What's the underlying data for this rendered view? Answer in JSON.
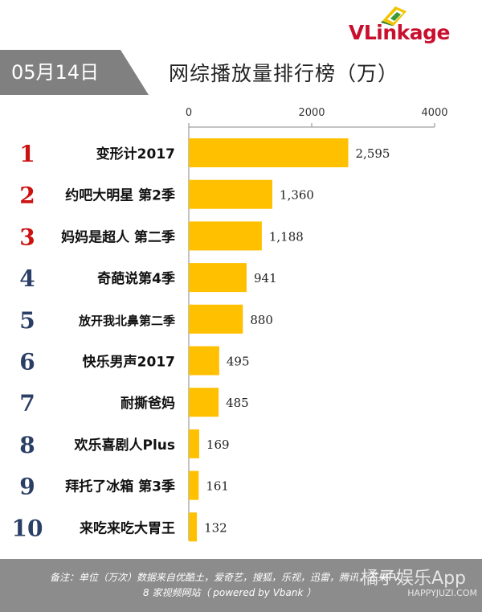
{
  "logo": {
    "brand": "VLinkage"
  },
  "date": "05月14日",
  "title": "网综播放量排行榜（万）",
  "colors": {
    "bar": "#ffc000",
    "rank_red": "#cc1111",
    "rank_blue": "#2b3f66",
    "date_tab": "#808080",
    "footer": "#8c8c8c"
  },
  "chart_data": {
    "type": "bar",
    "orientation": "horizontal",
    "title": "网综播放量排行榜（万）",
    "xlim": [
      0,
      4000
    ],
    "xticks": [
      0,
      2000,
      4000
    ],
    "grid": false,
    "ranks": [
      "1",
      "2",
      "3",
      "4",
      "5",
      "6",
      "7",
      "8",
      "9",
      "10"
    ],
    "categories": [
      "变形计2017",
      "约吧大明星 第2季",
      "妈妈是超人 第二季",
      "奇葩说第4季",
      "放开我北鼻第二季",
      "快乐男声2017",
      "耐撕爸妈",
      "欢乐喜剧人Plus",
      "拜托了冰箱 第3季",
      "来吃来吃大胃王"
    ],
    "values": [
      2595,
      1360,
      1188,
      941,
      880,
      495,
      485,
      169,
      161,
      132
    ],
    "value_labels": [
      "2,595",
      "1,360",
      "1,188",
      "941",
      "880",
      "495",
      "485",
      "169",
      "161",
      "132"
    ]
  },
  "footer": {
    "note_line1": "备注：单位（万次）数据来自优酷土，爱奇艺，搜狐，乐视，迅雷，腾讯，芒果TV",
    "note_line2": "8 家视频网站（ powered by Vbank ）"
  },
  "watermark": {
    "line1": "橘子娱乐App",
    "line2": "HAPPYJUZI.COM"
  }
}
